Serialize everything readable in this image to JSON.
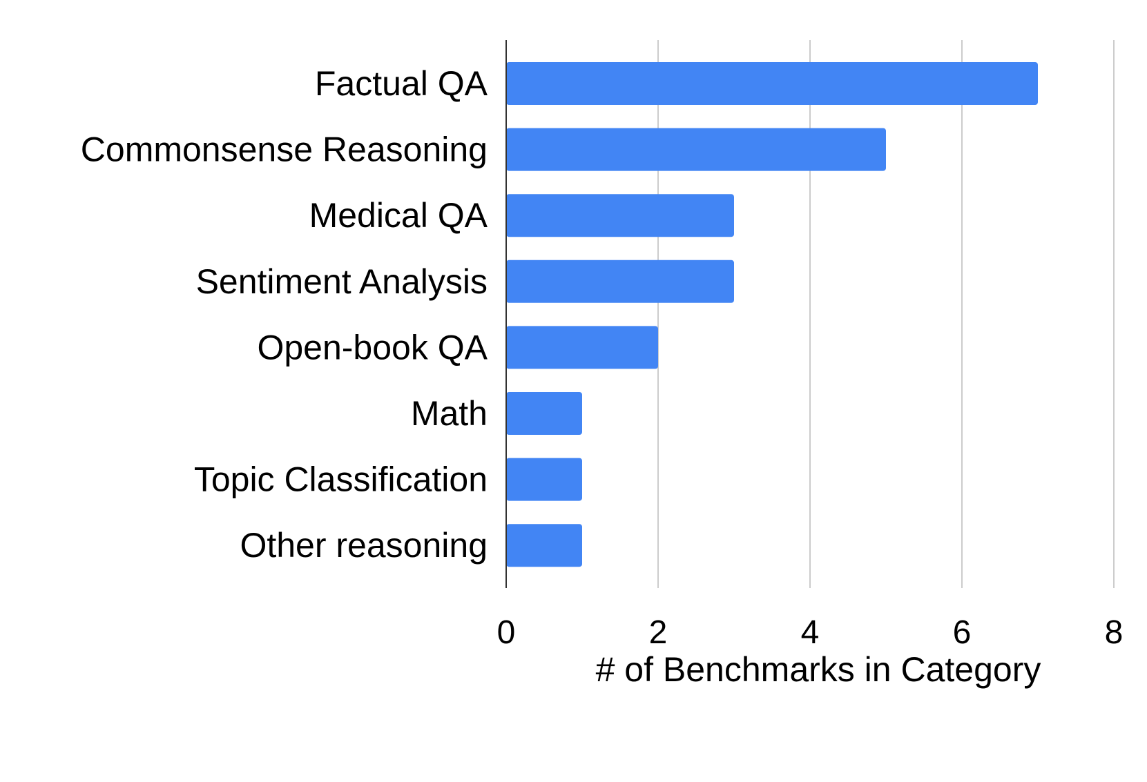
{
  "chart_data": {
    "type": "bar",
    "orientation": "horizontal",
    "categories": [
      "Factual QA",
      "Commonsense Reasoning",
      "Medical QA",
      "Sentiment Analysis",
      "Open-book QA",
      "Math",
      "Topic Classification",
      "Other reasoning"
    ],
    "values": [
      7,
      5,
      3,
      3,
      2,
      1,
      1,
      1
    ],
    "xlabel": "# of Benchmarks in Category",
    "ylabel": "",
    "xlim": [
      0,
      8
    ],
    "xticks": [
      0,
      2,
      4,
      6,
      8
    ],
    "grid": true,
    "legend": "none",
    "bar_color": "#4285F4",
    "grid_color": "#CCCCCC",
    "axis_color": "#333333"
  }
}
